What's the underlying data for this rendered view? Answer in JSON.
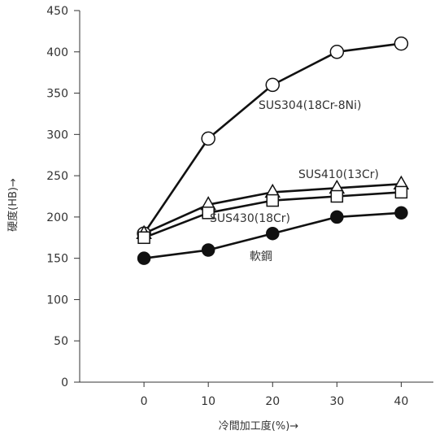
{
  "chart_data": {
    "type": "line",
    "xlabel": "冷間加工度(%)→",
    "ylabel": "硬度(HB)→",
    "x": [
      0,
      10,
      20,
      30,
      40
    ],
    "xlim": [
      -10,
      45
    ],
    "ylim": [
      0,
      450
    ],
    "xticks": [
      "0",
      "10",
      "20",
      "30",
      "40"
    ],
    "yticks": [
      "0",
      "50",
      "100",
      "150",
      "200",
      "250",
      "300",
      "350",
      "400",
      "450"
    ],
    "grid": false,
    "series": [
      {
        "name": "SUS304(18Cr-8Ni)",
        "values": [
          180,
          295,
          360,
          400,
          410
        ],
        "marker": "open-circle"
      },
      {
        "name": "SUS410(13Cr)",
        "values": [
          180,
          215,
          230,
          235,
          240
        ],
        "marker": "open-triangle"
      },
      {
        "name": "SUS430(18Cr)",
        "values": [
          175,
          205,
          220,
          225,
          230
        ],
        "marker": "open-square"
      },
      {
        "name": "軟鋼",
        "values": [
          150,
          160,
          180,
          200,
          205
        ],
        "marker": "filled-circle"
      }
    ]
  }
}
